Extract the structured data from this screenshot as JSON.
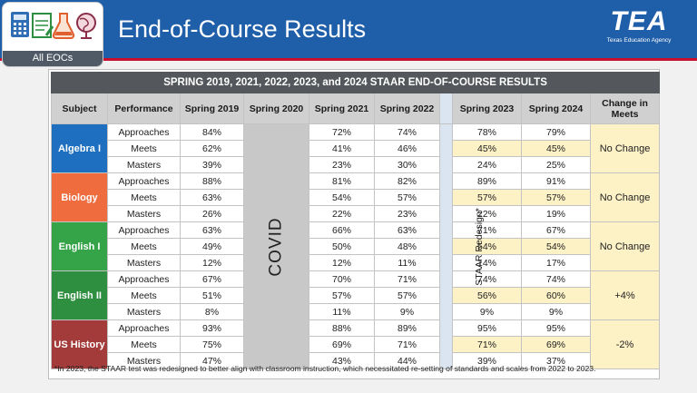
{
  "header": {
    "title": "End-of-Course Results",
    "logo_label": "All EOCs",
    "tea_mark": "TEA",
    "tea_sub": "Texas Education Agency"
  },
  "colors": {
    "header_blue": "#1f5ea8",
    "accent_red": "#c8102e",
    "algebra": "#1f6fc0",
    "biology": "#ee6c3e",
    "english1": "#35a348",
    "english2": "#2e8f40",
    "ushistory": "#a33b3b",
    "highlight": "#fdf1c6"
  },
  "table": {
    "title": "SPRING 2019, 2021, 2022, 2023, and 2024 STAAR END-OF-COURSE RESULTS",
    "headers": [
      "Subject",
      "Performance",
      "Spring 2019",
      "Spring 2020",
      "Spring 2021",
      "Spring 2022",
      "Spring 2023",
      "Spring 2024",
      "Change in Meets"
    ],
    "covid_label": "COVID",
    "redesign_label": "STAAR Redesign*",
    "subjects": [
      {
        "name": "Algebra I",
        "change": "No Change",
        "rows": [
          {
            "level": "Approaches",
            "s2019": "84%",
            "s2021": "72%",
            "s2022": "74%",
            "s2023": "78%",
            "s2024": "79%"
          },
          {
            "level": "Meets",
            "s2019": "62%",
            "s2021": "41%",
            "s2022": "46%",
            "s2023": "45%",
            "s2024": "45%"
          },
          {
            "level": "Masters",
            "s2019": "39%",
            "s2021": "23%",
            "s2022": "30%",
            "s2023": "24%",
            "s2024": "25%"
          }
        ]
      },
      {
        "name": "Biology",
        "change": "No Change",
        "rows": [
          {
            "level": "Approaches",
            "s2019": "88%",
            "s2021": "81%",
            "s2022": "82%",
            "s2023": "89%",
            "s2024": "91%"
          },
          {
            "level": "Meets",
            "s2019": "63%",
            "s2021": "54%",
            "s2022": "57%",
            "s2023": "57%",
            "s2024": "57%"
          },
          {
            "level": "Masters",
            "s2019": "26%",
            "s2021": "22%",
            "s2022": "23%",
            "s2023": "22%",
            "s2024": "19%"
          }
        ]
      },
      {
        "name": "English I",
        "change": "No Change",
        "rows": [
          {
            "level": "Approaches",
            "s2019": "63%",
            "s2021": "66%",
            "s2022": "63%",
            "s2023": "71%",
            "s2024": "67%"
          },
          {
            "level": "Meets",
            "s2019": "49%",
            "s2021": "50%",
            "s2022": "48%",
            "s2023": "54%",
            "s2024": "54%"
          },
          {
            "level": "Masters",
            "s2019": "12%",
            "s2021": "12%",
            "s2022": "11%",
            "s2023": "14%",
            "s2024": "17%"
          }
        ]
      },
      {
        "name": "English II",
        "change": "+4%",
        "rows": [
          {
            "level": "Approaches",
            "s2019": "67%",
            "s2021": "70%",
            "s2022": "71%",
            "s2023": "74%",
            "s2024": "74%"
          },
          {
            "level": "Meets",
            "s2019": "51%",
            "s2021": "57%",
            "s2022": "57%",
            "s2023": "56%",
            "s2024": "60%"
          },
          {
            "level": "Masters",
            "s2019": "8%",
            "s2021": "11%",
            "s2022": "9%",
            "s2023": "9%",
            "s2024": "9%"
          }
        ]
      },
      {
        "name": "US History",
        "change": "-2%",
        "rows": [
          {
            "level": "Approaches",
            "s2019": "93%",
            "s2021": "88%",
            "s2022": "89%",
            "s2023": "95%",
            "s2024": "95%"
          },
          {
            "level": "Meets",
            "s2019": "75%",
            "s2021": "69%",
            "s2022": "71%",
            "s2023": "71%",
            "s2024": "69%"
          },
          {
            "level": "Masters",
            "s2019": "47%",
            "s2021": "43%",
            "s2022": "44%",
            "s2023": "39%",
            "s2024": "37%"
          }
        ]
      }
    ]
  },
  "footnote": "*In 2023, the STAAR test was redesigned to better align with classroom instruction, which necessitated re-setting of standards and scales from 2022 to 2023."
}
